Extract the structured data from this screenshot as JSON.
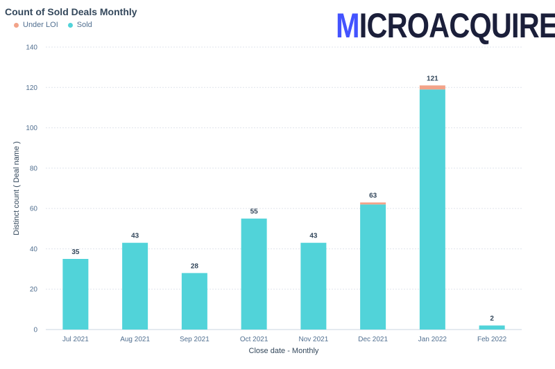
{
  "header": {
    "title": "Count of Sold Deals Monthly",
    "logo_first": "M",
    "logo_rest": "ICROACQUIRE"
  },
  "legend": [
    {
      "name": "Under LOI",
      "color": "#f2a389"
    },
    {
      "name": "Sold",
      "color": "#51d3d9"
    }
  ],
  "chart_data": {
    "type": "bar",
    "stacked": true,
    "title": "Count of Sold Deals Monthly",
    "xlabel": "Close date - Monthly",
    "ylabel": "Distinct count ( Deal name )",
    "categories": [
      "Jul 2021",
      "Aug 2021",
      "Sep 2021",
      "Oct 2021",
      "Nov 2021",
      "Dec 2021",
      "Jan 2022",
      "Feb 2022"
    ],
    "series": [
      {
        "name": "Sold",
        "color": "#51d3d9",
        "values": [
          35,
          43,
          28,
          55,
          43,
          62,
          119,
          2
        ]
      },
      {
        "name": "Under LOI",
        "color": "#f2a389",
        "values": [
          0,
          0,
          0,
          0,
          0,
          1,
          2,
          0
        ]
      }
    ],
    "totals": [
      35,
      43,
      28,
      55,
      43,
      63,
      121,
      2
    ],
    "ylim": [
      0,
      140
    ],
    "yticks": [
      0,
      20,
      40,
      60,
      80,
      100,
      120,
      140
    ],
    "grid": true,
    "legend_position": "top-left"
  }
}
